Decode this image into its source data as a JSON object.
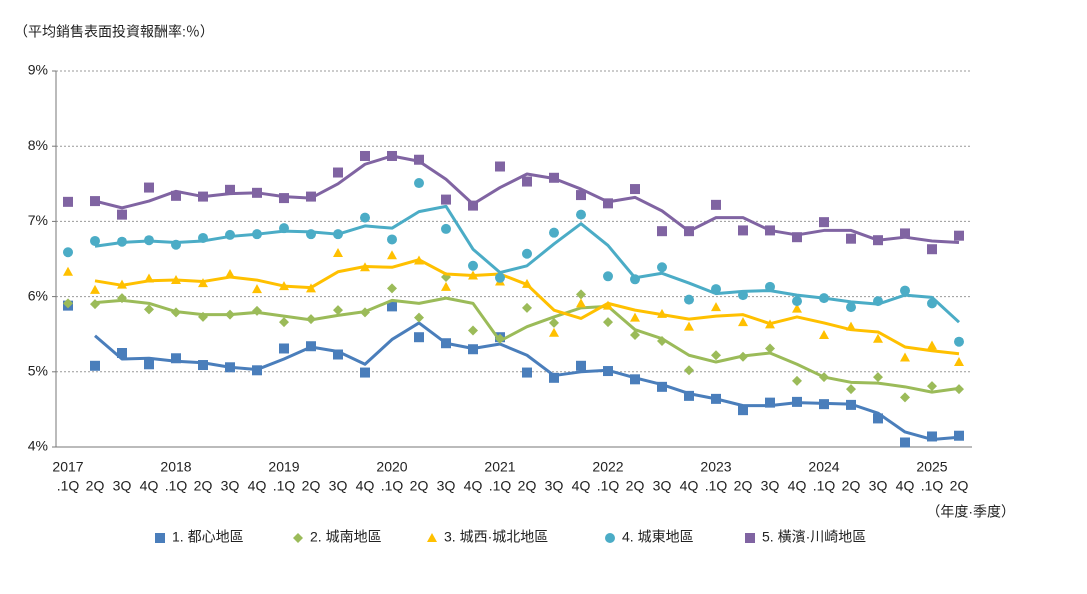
{
  "chart_data": {
    "type": "line",
    "unit_label": "（平均銷售表面投資報酬率:％）",
    "x_unit_label": "（年度·季度）",
    "categories": [
      ".1Q",
      "2Q",
      "3Q",
      "4Q",
      ".1Q",
      "2Q",
      "3Q",
      "4Q",
      ".1Q",
      "2Q",
      "3Q",
      "4Q",
      ".1Q",
      "2Q",
      "3Q",
      "4Q",
      ".1Q",
      "2Q",
      "3Q",
      "4Q",
      ".1Q",
      "2Q",
      "3Q",
      "4Q",
      ".1Q",
      "2Q",
      "3Q",
      "4Q",
      ".1Q",
      "2Q",
      "3Q",
      "4Q",
      ".1Q",
      "2Q"
    ],
    "years": [
      "2017",
      null,
      null,
      null,
      "2018",
      null,
      null,
      null,
      "2019",
      null,
      null,
      null,
      "2020",
      null,
      null,
      null,
      "2021",
      null,
      null,
      null,
      "2022",
      null,
      null,
      null,
      "2023",
      null,
      null,
      null,
      "2024",
      null,
      null,
      null,
      "2025",
      null
    ],
    "ylim": [
      4,
      9
    ],
    "yticks": [
      {
        "value": 4,
        "label": "4%"
      },
      {
        "value": 5,
        "label": "5%"
      },
      {
        "value": 6,
        "label": "6%"
      },
      {
        "value": 7,
        "label": "7%"
      },
      {
        "value": 8,
        "label": "8%"
      },
      {
        "value": 9,
        "label": "9%"
      }
    ],
    "grid": true,
    "legend": "bottom",
    "series": [
      {
        "name": "1. 都心地區",
        "color": "#4a7ebb",
        "marker": "square",
        "values": [
          5.88,
          5.08,
          5.25,
          5.1,
          5.18,
          5.09,
          5.06,
          5.02,
          5.31,
          5.34,
          5.23,
          4.99,
          5.87,
          5.46,
          5.38,
          5.3,
          5.46,
          4.99,
          4.92,
          5.08,
          5.01,
          4.9,
          4.8,
          4.68,
          4.64,
          4.49,
          4.59,
          4.6,
          4.57,
          4.56,
          4.38,
          4.06,
          4.14,
          4.15
        ],
        "trend": [
          null,
          5.48,
          5.17,
          5.18,
          5.14,
          5.12,
          5.06,
          5.03,
          5.17,
          5.33,
          5.27,
          5.1,
          5.43,
          5.65,
          5.38,
          5.31,
          5.37,
          5.22,
          4.95,
          5.0,
          5.02,
          4.92,
          4.83,
          4.71,
          4.64,
          4.55,
          4.55,
          4.59,
          4.58,
          4.57,
          4.45,
          4.2,
          4.1,
          4.13
        ]
      },
      {
        "name": "2. 城南地區",
        "color": "#9bbb59",
        "marker": "diamond",
        "values": [
          5.91,
          5.9,
          5.98,
          5.83,
          5.79,
          5.73,
          5.76,
          5.81,
          5.66,
          5.7,
          5.82,
          5.79,
          6.11,
          5.72,
          6.26,
          5.55,
          5.44,
          5.85,
          5.65,
          6.03,
          5.66,
          5.49,
          5.41,
          5.02,
          5.22,
          5.2,
          5.31,
          4.88,
          4.93,
          4.77,
          4.93,
          4.66,
          4.81,
          4.77
        ],
        "trend": [
          null,
          5.92,
          5.95,
          5.91,
          5.8,
          5.76,
          5.76,
          5.79,
          5.74,
          5.69,
          5.75,
          5.8,
          5.95,
          5.91,
          5.98,
          5.91,
          5.41,
          5.6,
          5.73,
          5.85,
          5.87,
          5.56,
          5.44,
          5.22,
          5.13,
          5.21,
          5.25,
          5.1,
          4.93,
          4.86,
          4.85,
          4.8,
          4.73,
          4.78
        ]
      },
      {
        "name": "3. 城西·城北地區",
        "color": "#ffc000",
        "marker": "triangle",
        "values": [
          6.33,
          6.09,
          6.16,
          6.24,
          6.22,
          6.18,
          6.3,
          6.1,
          6.14,
          6.11,
          6.58,
          6.39,
          6.55,
          6.48,
          6.13,
          6.28,
          6.2,
          6.17,
          5.52,
          5.91,
          5.88,
          5.72,
          5.77,
          5.6,
          5.86,
          5.66,
          5.63,
          5.84,
          5.49,
          5.6,
          5.44,
          5.19,
          5.35,
          5.13
        ],
        "trend": [
          null,
          6.21,
          6.15,
          6.21,
          6.22,
          6.2,
          6.26,
          6.22,
          6.14,
          6.12,
          6.33,
          6.4,
          6.39,
          6.49,
          6.3,
          6.28,
          6.3,
          6.16,
          5.82,
          5.71,
          5.91,
          5.82,
          5.76,
          5.7,
          5.74,
          5.76,
          5.64,
          5.73,
          5.65,
          5.56,
          5.53,
          5.33,
          5.28,
          5.24
        ]
      },
      {
        "name": "4. 城東地區",
        "color": "#4bacc6",
        "marker": "circle",
        "values": [
          6.59,
          6.74,
          6.73,
          6.75,
          6.69,
          6.78,
          6.82,
          6.83,
          6.91,
          6.83,
          6.83,
          7.05,
          6.76,
          7.51,
          6.9,
          6.41,
          6.25,
          6.57,
          6.85,
          7.09,
          6.27,
          6.23,
          6.39,
          5.96,
          6.1,
          6.02,
          6.13,
          5.94,
          5.98,
          5.86,
          5.94,
          6.08,
          5.91,
          5.4
        ],
        "trend": [
          null,
          6.67,
          6.72,
          6.74,
          6.72,
          6.74,
          6.8,
          6.83,
          6.87,
          6.86,
          6.83,
          6.94,
          6.91,
          7.13,
          7.2,
          6.63,
          6.32,
          6.41,
          6.7,
          6.97,
          6.68,
          6.25,
          6.31,
          6.18,
          6.04,
          6.07,
          6.08,
          6.02,
          5.98,
          5.93,
          5.9,
          6.02,
          5.99,
          5.66
        ]
      },
      {
        "name": "5. 橫濱·川崎地區",
        "color": "#8064a2",
        "marker": "square",
        "values": [
          7.26,
          7.27,
          7.09,
          7.45,
          7.34,
          7.33,
          7.42,
          7.38,
          7.31,
          7.33,
          7.65,
          7.87,
          7.87,
          7.82,
          7.29,
          7.21,
          7.73,
          7.53,
          7.58,
          7.35,
          7.24,
          7.43,
          6.87,
          6.87,
          7.22,
          6.88,
          6.88,
          6.79,
          6.99,
          6.77,
          6.75,
          6.84,
          6.63,
          6.81
        ],
        "trend": [
          null,
          7.27,
          7.18,
          7.27,
          7.4,
          7.33,
          7.37,
          7.38,
          7.33,
          7.31,
          7.5,
          7.76,
          7.87,
          7.8,
          7.56,
          7.23,
          7.45,
          7.63,
          7.57,
          7.43,
          7.26,
          7.32,
          7.14,
          6.87,
          7.05,
          7.05,
          6.88,
          6.82,
          6.88,
          6.88,
          6.75,
          6.79,
          6.74,
          6.72
        ]
      }
    ]
  }
}
